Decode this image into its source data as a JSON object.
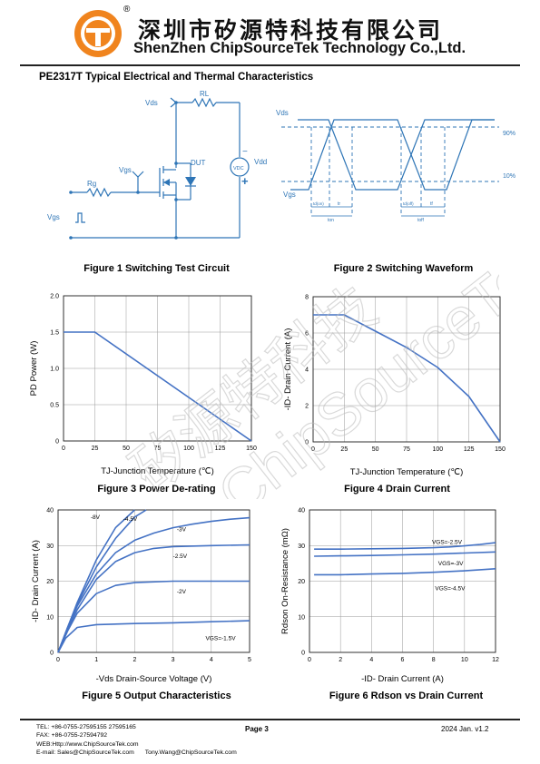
{
  "header": {
    "logo_registered": "®",
    "company_cn": "深圳市矽源特科技有限公司",
    "company_en": "ShenZhen ChipSourceTek Technology Co.,Ltd."
  },
  "page_title": "PE2317T Typical Electrical and Thermal Characteristics",
  "watermark": {
    "cn": "矽源特科技",
    "en": "ChipSourceTek"
  },
  "figure1": {
    "caption": "Figure 1 Switching Test Circuit",
    "labels": {
      "vds": "Vds",
      "rl": "RL",
      "dut": "DUT",
      "vgs": "Vgs",
      "rg": "Rg",
      "vgs_in": "Vgs",
      "vdc": "VDC",
      "vdd": "Vdd",
      "minus": "−",
      "plus": "+"
    }
  },
  "figure2": {
    "caption": "Figure 2 Switching Waveform",
    "labels": {
      "vds": "Vds",
      "vgs": "Vgs",
      "p90": "90%",
      "p10": "10%",
      "tdon": "td(on)",
      "tr": "tr",
      "ton": "ton",
      "tdoff": "td(off)",
      "tf": "tf",
      "toff": "toff"
    }
  },
  "figure3": {
    "caption": "Figure 3 Power De-rating",
    "chart_data": {
      "type": "line",
      "xlabel": "TJ-Junction Temperature (℃)",
      "ylabel": "PD Power (W)",
      "xlim": [
        0,
        150
      ],
      "ylim": [
        0,
        2.0
      ],
      "xticks": [
        "0",
        "25",
        "50",
        "75",
        "100",
        "125",
        "150"
      ],
      "yticks": [
        "0",
        "0.5",
        "1.0",
        "1.5",
        "2.0"
      ],
      "grid": true,
      "series": [
        {
          "x": [
            0,
            25,
            150
          ],
          "y": [
            1.5,
            1.5,
            0
          ]
        }
      ]
    }
  },
  "figure4": {
    "caption": "Figure 4 Drain Current",
    "chart_data": {
      "type": "line",
      "xlabel": "TJ-Junction Temperature (℃)",
      "ylabel": "-ID- Drain Current (A)",
      "xlim": [
        0,
        150
      ],
      "ylim": [
        0,
        8
      ],
      "xticks": [
        "0",
        "25",
        "50",
        "75",
        "100",
        "125",
        "150"
      ],
      "yticks": [
        "0",
        "2",
        "4",
        "6",
        "8"
      ],
      "grid": true,
      "series": [
        {
          "x": [
            0,
            25,
            50,
            75,
            100,
            125,
            150
          ],
          "y": [
            7.0,
            7.0,
            6.1,
            5.2,
            4.1,
            2.5,
            0
          ]
        }
      ]
    }
  },
  "figure5": {
    "caption": "Figure 5 Output Characteristics",
    "chart_data": {
      "type": "line",
      "xlabel": "-Vds Drain-Source Voltage (V)",
      "ylabel": "-ID- Drain Current (A)",
      "xlim": [
        0,
        5
      ],
      "ylim": [
        0,
        40
      ],
      "xticks": [
        "0",
        "1",
        "2",
        "3",
        "4",
        "5"
      ],
      "yticks": [
        "0",
        "10",
        "20",
        "30",
        "40"
      ],
      "grid": true,
      "series": [
        {
          "name": "-8V",
          "x": [
            0,
            0.25,
            0.5,
            1.0,
            1.5,
            2.0
          ],
          "y": [
            0,
            7,
            14,
            26,
            35,
            41
          ]
        },
        {
          "name": "-4.5V",
          "x": [
            0,
            0.25,
            0.5,
            1.0,
            1.5,
            2.0,
            2.3
          ],
          "y": [
            0,
            7,
            13.5,
            24,
            32,
            38,
            41
          ]
        },
        {
          "name": "-3V",
          "x": [
            0,
            0.25,
            0.5,
            1.0,
            1.5,
            2.0,
            2.5,
            3.0,
            3.5,
            4.0,
            4.5,
            5.0
          ],
          "y": [
            0,
            7,
            13,
            22,
            28,
            31.5,
            33.5,
            35,
            36,
            36.8,
            37.4,
            37.8
          ]
        },
        {
          "name": "-2.5V",
          "x": [
            0,
            0.25,
            0.5,
            1.0,
            1.5,
            2.0,
            2.5,
            3.0,
            4.0,
            5.0
          ],
          "y": [
            0,
            6.5,
            12,
            20.5,
            25.5,
            28,
            29.2,
            29.7,
            30.0,
            30.2
          ]
        },
        {
          "name": "-2V",
          "x": [
            0,
            0.25,
            0.5,
            1.0,
            1.5,
            2.0,
            3.0,
            4.0,
            5.0
          ],
          "y": [
            0,
            6,
            11,
            16.5,
            18.8,
            19.6,
            20.0,
            20.0,
            20.0
          ]
        },
        {
          "name": "VGS=-1.5V",
          "x": [
            0,
            0.2,
            0.5,
            1.0,
            2.0,
            3.0,
            4.0,
            5.0
          ],
          "y": [
            0,
            4,
            7,
            7.8,
            8.1,
            8.3,
            8.6,
            8.9
          ]
        }
      ]
    }
  },
  "figure6": {
    "caption": "Figure 6 Rdson vs Drain Current",
    "chart_data": {
      "type": "line",
      "xlabel": "-ID- Drain Current (A)",
      "ylabel": "Rdson On-Resistance (mΩ)",
      "xlim": [
        0,
        12
      ],
      "ylim": [
        0,
        40
      ],
      "xticks": [
        "0",
        "2",
        "4",
        "6",
        "8",
        "10",
        "12"
      ],
      "yticks": [
        "0",
        "10",
        "20",
        "30",
        "40"
      ],
      "grid": true,
      "series": [
        {
          "name": "VGS=-2.5V",
          "x": [
            0.3,
            2,
            4,
            6,
            8,
            9,
            10,
            11,
            12
          ],
          "y": [
            29.0,
            29.0,
            29.1,
            29.2,
            29.4,
            29.6,
            29.9,
            30.3,
            30.8
          ]
        },
        {
          "name": "VGS=-3V",
          "x": [
            0.3,
            2,
            4,
            6,
            8,
            10,
            12
          ],
          "y": [
            27.0,
            27.1,
            27.2,
            27.4,
            27.6,
            27.9,
            28.2
          ]
        },
        {
          "name": "VGS=-4.5V",
          "x": [
            0.3,
            2,
            4,
            6,
            8,
            10,
            12
          ],
          "y": [
            21.8,
            21.8,
            22.0,
            22.2,
            22.5,
            22.9,
            23.5
          ]
        }
      ]
    }
  },
  "footer": {
    "tel": "TEL: +86-0755-27595155 27595165",
    "fax": "FAX: +86-0755-27594792",
    "web": "WEB:Http://www.ChipSourceTek.com",
    "email": "E-mail: Sales@ChipSourceTek.com",
    "email2": "Tony.Wang@ChipSourceTek.com",
    "page": "Page 3",
    "version": "2024 Jan. v1.2"
  },
  "colors": {
    "curve": "#4472c4",
    "circuit": "#2e75b6",
    "grid": "#999999",
    "logo_orange": "#f0841e"
  }
}
